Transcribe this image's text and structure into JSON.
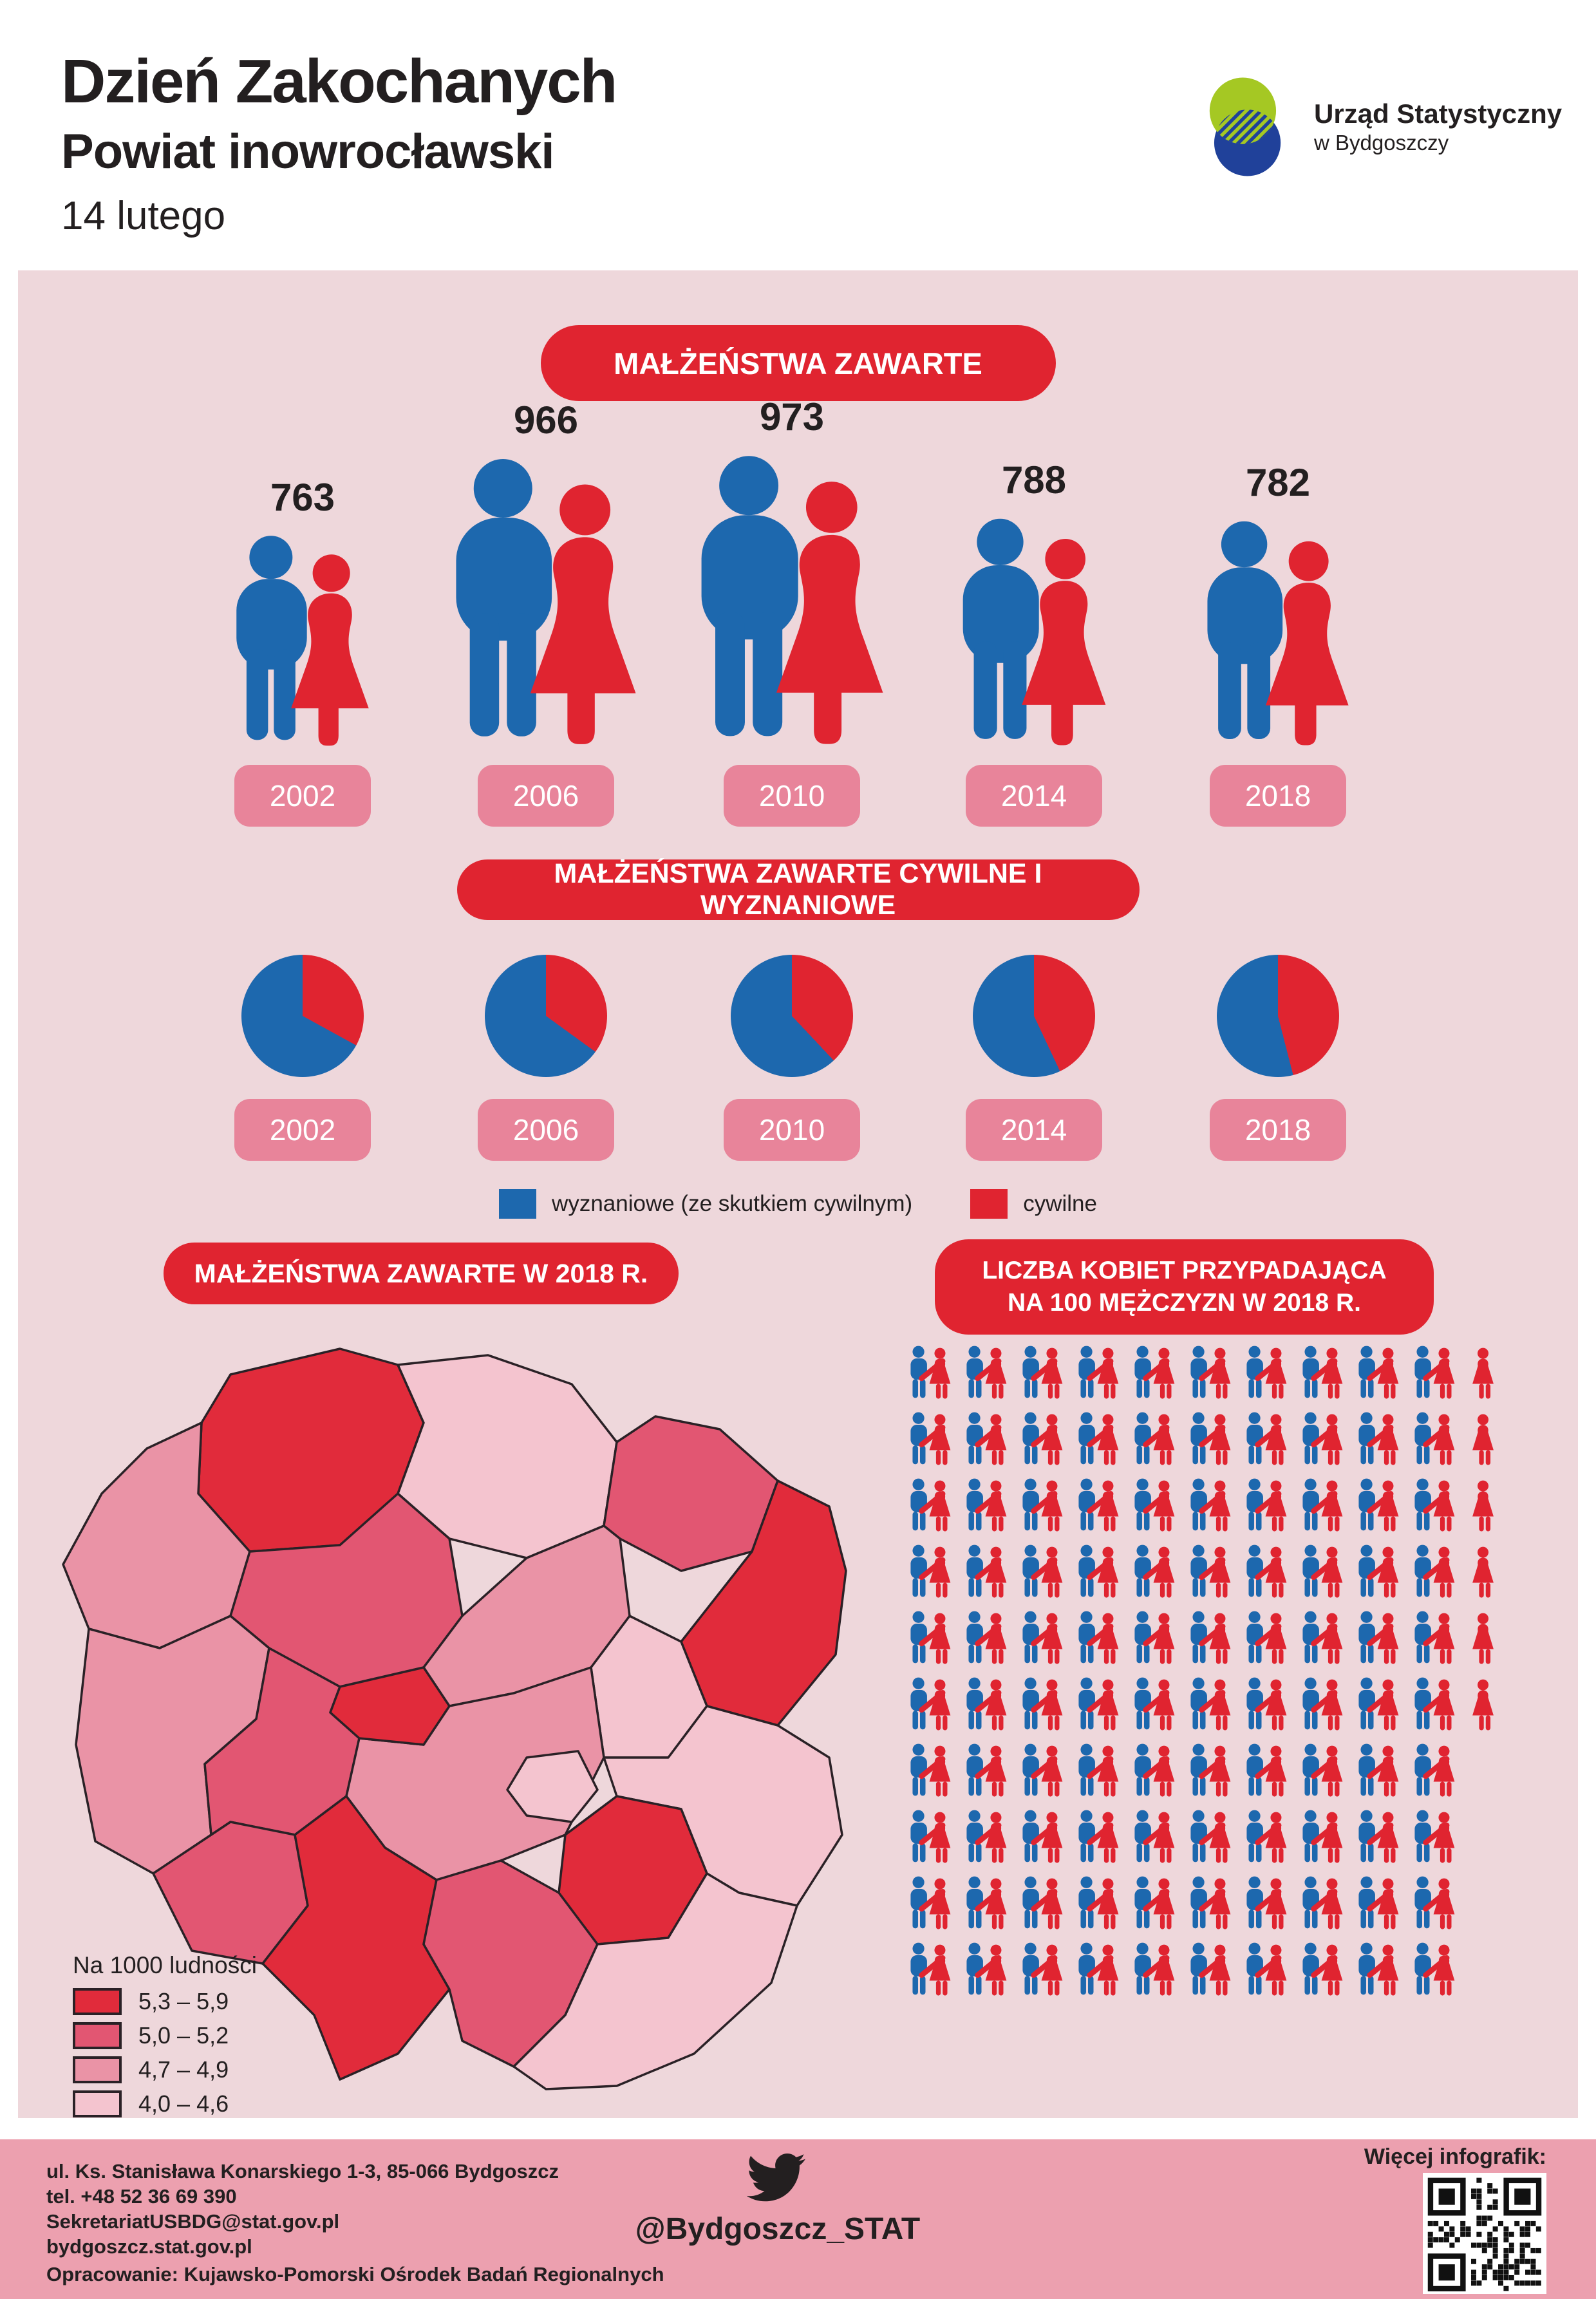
{
  "header": {
    "title": "Dzień Zakochanych",
    "subtitle": "Powiat inowrocławski",
    "date": "14 lutego"
  },
  "logo": {
    "org": "Urząd Statystyczny",
    "city": "w Bydgoszczy"
  },
  "colors": {
    "red": "#e02430",
    "blue": "#1d68ae",
    "ink": "#231f20",
    "panel": "#eed7db",
    "badge": "#e8849a",
    "footer": "#eca0af"
  },
  "sections": {
    "marriages_title": "MAŁŻEŃSTWA ZAWARTE",
    "civil_title": "MAŁŻEŃSTWA ZAWARTE CYWILNE I WYZNANIOWE",
    "map_title": "MAŁŻEŃSTWA ZAWARTE  W 2018 R.",
    "ratio_title_line1": "LICZBA KOBIET PRZYPADAJĄCA",
    "ratio_title_line2": "NA 100 MĘŻCZYZN W 2018 R."
  },
  "years": [
    "2002",
    "2006",
    "2010",
    "2014",
    "2018"
  ],
  "marriages": {
    "values": [
      763,
      966,
      973,
      788,
      782
    ]
  },
  "pie_legend": [
    {
      "label": "wyznaniowe (ze skutkiem cywilnym)",
      "color": "#1d68ae"
    },
    {
      "label": "cywilne",
      "color": "#e02430"
    }
  ],
  "map_legend": {
    "title": "Na 1000 ludności",
    "classes": [
      {
        "range": "5,3 – 5,9",
        "color": "#e12b3b"
      },
      {
        "range": "5,0 – 5,2",
        "color": "#e25672"
      },
      {
        "range": "4,7 – 4,9",
        "color": "#ea93a6"
      },
      {
        "range": "4,0 – 4,6",
        "color": "#f4c4cf"
      }
    ]
  },
  "ratio": {
    "men": 100,
    "women": 106
  },
  "footer": {
    "address": "ul. Ks. Stanisława Konarskiego 1-3, 85-066 Bydgoszcz",
    "phone": "tel. +48 52 36 69 390",
    "email": "SekretariatUSBDG@stat.gov.pl",
    "website": "bydgoszcz.stat.gov.pl",
    "credit": "Opracowanie: Kujawsko-Pomorski Ośrodek Badań Regionalnych",
    "twitter": "@Bydgoszcz_STAT",
    "more_label": "Więcej infografik:"
  },
  "chart_data": [
    {
      "type": "bar",
      "title": "MAŁŻEŃSTWA ZAWARTE",
      "categories": [
        "2002",
        "2006",
        "2010",
        "2014",
        "2018"
      ],
      "values": [
        763,
        966,
        973,
        788,
        782
      ]
    },
    {
      "type": "pie",
      "title": "MAŁŻEŃSTWA ZAWARTE CYWILNE I WYZNANIOWE",
      "categories": [
        "2002",
        "2006",
        "2010",
        "2014",
        "2018"
      ],
      "series": [
        {
          "name": "wyznaniowe (ze skutkiem cywilnym)",
          "values": [
            67,
            65,
            62,
            57,
            54
          ]
        },
        {
          "name": "cywilne",
          "values": [
            33,
            35,
            38,
            43,
            46
          ]
        }
      ],
      "unit": "%",
      "legend_position": "bottom"
    },
    {
      "type": "heatmap",
      "title": "MAŁŻEŃSTWA ZAWARTE  W 2018 R.",
      "legend_title": "Na 1000 ludności",
      "classes": [
        "5,3 – 5,9",
        "5,0 – 5,2",
        "4,7 – 4,9",
        "4,0 – 4,6"
      ]
    },
    {
      "type": "pictogram",
      "title": "LICZBA KOBIET PRZYPADAJĄCA NA 100 MĘŻCZYZN W 2018 R.",
      "men": 100,
      "women": 106
    }
  ]
}
